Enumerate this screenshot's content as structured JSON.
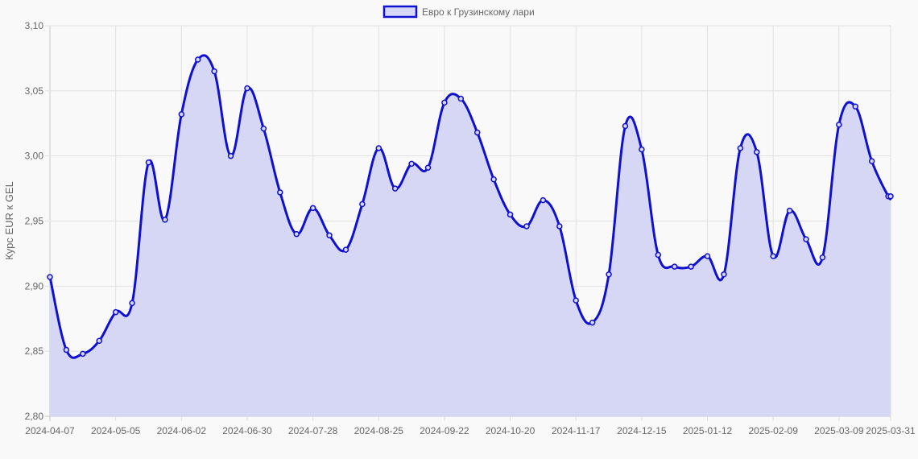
{
  "chart_data": {
    "type": "area",
    "ylabel": "Курс EUR к GEL",
    "ylim": [
      2.8,
      3.1
    ],
    "yticks": [
      "2,80",
      "2,85",
      "2,90",
      "2,95",
      "3,00",
      "3,05",
      "3,10"
    ],
    "xticks": [
      "2024-04-07",
      "2024-05-05",
      "2024-06-02",
      "2024-06-30",
      "2024-07-28",
      "2024-08-25",
      "2024-09-22",
      "2024-10-20",
      "2024-11-17",
      "2024-12-15",
      "2025-01-12",
      "2025-02-09",
      "2025-03-09",
      "2025-03-31"
    ],
    "grid": true,
    "legend_position": "top-center",
    "colors": {
      "line": "#1010d0",
      "fill": "#d5d7f5"
    },
    "series": [
      {
        "name": "Евро к Грузинскому лари",
        "x": [
          "2024-04-07",
          "2024-04-14",
          "2024-04-21",
          "2024-04-28",
          "2024-05-05",
          "2024-05-12",
          "2024-05-19",
          "2024-05-26",
          "2024-06-02",
          "2024-06-09",
          "2024-06-16",
          "2024-06-23",
          "2024-06-30",
          "2024-07-07",
          "2024-07-14",
          "2024-07-21",
          "2024-07-28",
          "2024-08-04",
          "2024-08-11",
          "2024-08-18",
          "2024-08-25",
          "2024-09-01",
          "2024-09-08",
          "2024-09-15",
          "2024-09-22",
          "2024-09-29",
          "2024-10-06",
          "2024-10-13",
          "2024-10-20",
          "2024-10-27",
          "2024-11-03",
          "2024-11-10",
          "2024-11-17",
          "2024-11-24",
          "2024-12-01",
          "2024-12-08",
          "2024-12-15",
          "2024-12-22",
          "2024-12-29",
          "2025-01-05",
          "2025-01-12",
          "2025-01-19",
          "2025-01-26",
          "2025-02-02",
          "2025-02-09",
          "2025-02-16",
          "2025-02-23",
          "2025-03-02",
          "2025-03-09",
          "2025-03-16",
          "2025-03-23",
          "2025-03-30",
          "2025-03-31"
        ],
        "values": [
          2.907,
          2.851,
          2.848,
          2.858,
          2.88,
          2.887,
          2.995,
          2.951,
          3.032,
          3.074,
          3.065,
          3.0,
          3.052,
          3.021,
          2.972,
          2.94,
          2.96,
          2.939,
          2.928,
          2.963,
          3.006,
          2.975,
          2.994,
          2.991,
          3.041,
          3.044,
          3.018,
          2.982,
          2.955,
          2.946,
          2.966,
          2.946,
          2.889,
          2.872,
          2.909,
          3.023,
          3.005,
          2.924,
          2.915,
          2.915,
          2.923,
          2.909,
          3.006,
          3.003,
          2.923,
          2.958,
          2.936,
          2.922,
          3.024,
          3.038,
          2.996,
          2.969,
          2.969
        ]
      }
    ]
  }
}
